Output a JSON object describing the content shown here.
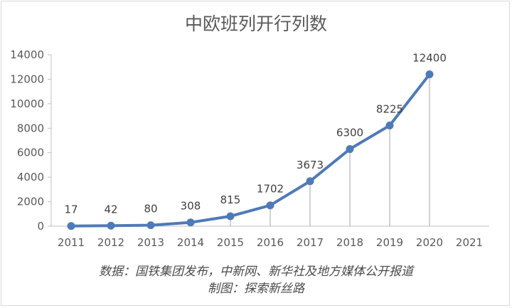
{
  "chart_data": {
    "type": "line",
    "title": "中欧班列开行列数",
    "categories": [
      "2011",
      "2012",
      "2013",
      "2014",
      "2015",
      "2016",
      "2017",
      "2018",
      "2019",
      "2020",
      "2021"
    ],
    "series": [
      {
        "values": [
          17,
          42,
          80,
          308,
          815,
          1702,
          3673,
          6300,
          8225,
          12400,
          null
        ]
      }
    ],
    "data_labels": [
      "17",
      "42",
      "80",
      "308",
      "815",
      "1702",
      "3673",
      "6300",
      "8225",
      "12400"
    ],
    "y_ticks": [
      "0",
      "2000",
      "4000",
      "6000",
      "8000",
      "10000",
      "12000",
      "14000"
    ],
    "ylim": [
      0,
      14000
    ],
    "xlabel": "",
    "ylabel": "",
    "grid": false,
    "drop_lines": true,
    "colors": {
      "line": "#4f7ab8",
      "marker": "#4f7ab8",
      "axis": "#bfbfbf",
      "drop_line": "#a6a6a6",
      "text": "#595959"
    }
  },
  "source": {
    "line1": "数据：国铁集团发布，中新网、新华社及地方媒体公开报道",
    "line2": "制图：探索新丝路"
  }
}
